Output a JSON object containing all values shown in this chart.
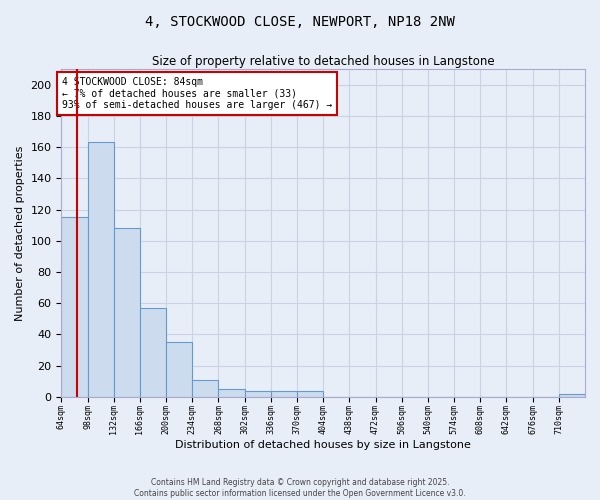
{
  "title_line1": "4, STOCKWOOD CLOSE, NEWPORT, NP18 2NW",
  "title_line2": "Size of property relative to detached houses in Langstone",
  "xlabel": "Distribution of detached houses by size in Langstone",
  "ylabel": "Number of detached properties",
  "bin_edges": [
    64,
    98,
    132,
    166,
    200,
    234,
    268,
    302,
    336,
    370,
    404,
    438,
    472,
    506,
    540,
    574,
    608,
    642,
    676,
    710,
    744
  ],
  "bar_heights": [
    115,
    163,
    108,
    57,
    35,
    11,
    5,
    4,
    4,
    4,
    0,
    0,
    0,
    0,
    0,
    0,
    0,
    0,
    0,
    2
  ],
  "bar_color": "#ccdcee",
  "bar_edge_color": "#6699cc",
  "property_size": 84,
  "vline_color": "#cc0000",
  "annotation_text": "4 STOCKWOOD CLOSE: 84sqm\n← 7% of detached houses are smaller (33)\n93% of semi-detached houses are larger (467) →",
  "annotation_box_color": "#ffffff",
  "annotation_box_edge_color": "#cc0000",
  "ylim": [
    0,
    210
  ],
  "yticks": [
    0,
    20,
    40,
    60,
    80,
    100,
    120,
    140,
    160,
    180,
    200
  ],
  "grid_color": "#c8d4e4",
  "background_color": "#e8eef8",
  "footer_line1": "Contains HM Land Registry data © Crown copyright and database right 2025.",
  "footer_line2": "Contains public sector information licensed under the Open Government Licence v3.0."
}
